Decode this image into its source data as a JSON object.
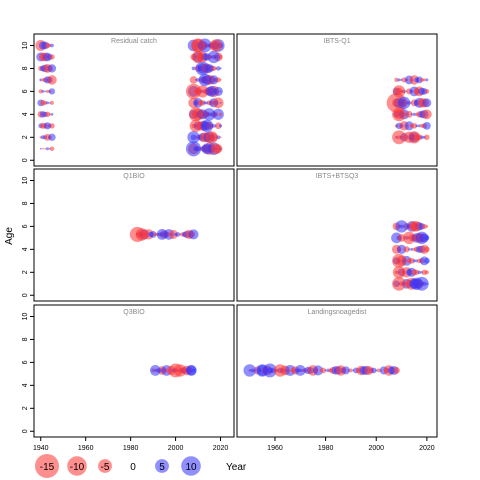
{
  "chart_data": {
    "type": "scatter",
    "ylabel": "Age",
    "xlabel": "Year",
    "colors": {
      "positive": "#3333ff",
      "negative": "#ff3333",
      "fill_opacity": 0.55
    },
    "age_ticks": [
      "0",
      "2",
      "4",
      "6",
      "8",
      "10"
    ],
    "year_ticks": [
      "1940",
      "1960",
      "1980",
      "2000",
      "2020"
    ],
    "ylim": [
      -0.5,
      11
    ],
    "left_xlim": [
      1937,
      2026
    ],
    "right_xlim": [
      1945,
      2024
    ],
    "legend": {
      "values": [
        -15,
        -10,
        -5,
        0,
        5,
        10
      ],
      "labels": [
        "-15",
        "-10",
        "-5",
        "0",
        "5",
        "10"
      ]
    },
    "panels": [
      {
        "title": "Residual catch",
        "col": 0,
        "row": 0,
        "show_x_ticks": false,
        "show_y_ticks": true,
        "rows": [
          {
            "age": 1,
            "spans": [
              {
                "from": 1940,
                "to": 1945,
                "amp": 0.6
              },
              {
                "from": 2008,
                "to": 2020,
                "amp": 4.5
              }
            ],
            "bigs": [
              [
                2008,
                6
              ],
              [
                2014,
                3
              ],
              [
                2018,
                -3
              ]
            ]
          },
          {
            "age": 2,
            "spans": [
              {
                "from": 1940,
                "to": 1945,
                "amp": 1.5
              },
              {
                "from": 2008,
                "to": 2020,
                "amp": 4
              }
            ],
            "bigs": [
              [
                2008,
                4
              ],
              [
                2016,
                -4
              ]
            ]
          },
          {
            "age": 3,
            "spans": [
              {
                "from": 1940,
                "to": 1945,
                "amp": 1.5
              },
              {
                "from": 2008,
                "to": 2020,
                "amp": 3.5
              }
            ],
            "bigs": [
              [
                2009,
                -4
              ],
              [
                2014,
                4
              ]
            ]
          },
          {
            "age": 4,
            "spans": [
              {
                "from": 1940,
                "to": 1945,
                "amp": 1.5
              },
              {
                "from": 2008,
                "to": 2020,
                "amp": 4
              }
            ],
            "bigs": [
              [
                2009,
                -5
              ],
              [
                2015,
                4
              ]
            ]
          },
          {
            "age": 5,
            "spans": [
              {
                "from": 1940,
                "to": 1945,
                "amp": 1.8
              },
              {
                "from": 2008,
                "to": 2020,
                "amp": 3
              }
            ],
            "bigs": []
          },
          {
            "age": 6,
            "spans": [
              {
                "from": 1940,
                "to": 1945,
                "amp": 1.5
              },
              {
                "from": 2008,
                "to": 2020,
                "amp": 3.5
              }
            ],
            "bigs": [
              [
                2008,
                -6
              ],
              [
                2012,
                -4
              ],
              [
                2016,
                3
              ]
            ]
          },
          {
            "age": 7,
            "spans": [
              {
                "from": 1940,
                "to": 1945,
                "amp": 2.5
              },
              {
                "from": 2008,
                "to": 2020,
                "amp": 3.5
              }
            ],
            "bigs": [
              [
                2013,
                4
              ]
            ]
          },
          {
            "age": 8,
            "spans": [
              {
                "from": 1940,
                "to": 1945,
                "amp": 2.5
              },
              {
                "from": 2008,
                "to": 2020,
                "amp": 3.5
              }
            ],
            "bigs": [
              [
                2012,
                5
              ]
            ]
          },
          {
            "age": 9,
            "spans": [
              {
                "from": 1940,
                "to": 1945,
                "amp": 3
              },
              {
                "from": 2008,
                "to": 2020,
                "amp": 3.5
              }
            ],
            "bigs": [
              [
                2010,
                -4
              ],
              [
                2017,
                4
              ]
            ]
          },
          {
            "age": 10,
            "spans": [
              {
                "from": 1940,
                "to": 1945,
                "amp": 3.5
              },
              {
                "from": 2008,
                "to": 2020,
                "amp": 4.5
              }
            ],
            "bigs": [
              [
                2013,
                5
              ],
              [
                2010,
                -5
              ],
              [
                2018,
                -4
              ]
            ]
          }
        ]
      },
      {
        "title": "IBTS-Q1",
        "col": 1,
        "row": 0,
        "show_x_ticks": false,
        "show_y_ticks": false,
        "rows": [
          {
            "age": 2,
            "spans": [
              {
                "from": 2008,
                "to": 2020,
                "amp": 3.5
              }
            ],
            "bigs": [
              [
                2009,
                -5
              ],
              [
                2015,
                -4
              ]
            ]
          },
          {
            "age": 3,
            "spans": [
              {
                "from": 2008,
                "to": 2020,
                "amp": 2.5
              }
            ],
            "bigs": []
          },
          {
            "age": 4,
            "spans": [
              {
                "from": 2008,
                "to": 2020,
                "amp": 3
              }
            ],
            "bigs": [
              [
                2009,
                -5
              ]
            ]
          },
          {
            "age": 5,
            "spans": [
              {
                "from": 2008,
                "to": 2020,
                "amp": 3.5
              }
            ],
            "bigs": [
              [
                2008,
                -10
              ],
              [
                2011,
                4
              ]
            ]
          },
          {
            "age": 6,
            "spans": [
              {
                "from": 2008,
                "to": 2020,
                "amp": 3
              }
            ],
            "bigs": [
              [
                2009,
                -4
              ]
            ]
          },
          {
            "age": 7,
            "spans": [
              {
                "from": 2008,
                "to": 2020,
                "amp": 2.5
              }
            ],
            "bigs": []
          }
        ]
      },
      {
        "title": "Q1BIO",
        "col": 0,
        "row": 1,
        "show_x_ticks": false,
        "show_y_ticks": true,
        "rows": [
          {
            "age": 5.3,
            "spans": [
              {
                "from": 1983,
                "to": 2008,
                "amp": 3
              }
            ],
            "bigs": [
              [
                1983,
                -6
              ],
              [
                1985,
                -4
              ],
              [
                1994,
                3
              ]
            ]
          }
        ]
      },
      {
        "title": "IBTS+BTSQ3",
        "col": 1,
        "row": 1,
        "show_x_ticks": false,
        "show_y_ticks": false,
        "rows": [
          {
            "age": 1,
            "spans": [
              {
                "from": 2008,
                "to": 2020,
                "amp": 4.5
              }
            ],
            "bigs": [
              [
                2009,
                -5
              ],
              [
                2018,
                5
              ],
              [
                2016,
                4
              ]
            ]
          },
          {
            "age": 2,
            "spans": [
              {
                "from": 2008,
                "to": 2020,
                "amp": 3
              }
            ],
            "bigs": [
              [
                2009,
                -4
              ]
            ]
          },
          {
            "age": 3,
            "spans": [
              {
                "from": 2008,
                "to": 2020,
                "amp": 3
              }
            ],
            "bigs": [
              [
                2009,
                -5
              ]
            ]
          },
          {
            "age": 4,
            "spans": [
              {
                "from": 2008,
                "to": 2020,
                "amp": 2.5
              }
            ],
            "bigs": []
          },
          {
            "age": 5,
            "spans": [
              {
                "from": 2008,
                "to": 2020,
                "amp": 3.5
              }
            ],
            "bigs": [
              [
                2013,
                -4
              ],
              [
                2018,
                4
              ]
            ]
          },
          {
            "age": 6,
            "spans": [
              {
                "from": 2008,
                "to": 2020,
                "amp": 3.5
              }
            ],
            "bigs": [
              [
                2010,
                4
              ],
              [
                2015,
                -3
              ]
            ]
          }
        ]
      },
      {
        "title": "Q3BIO",
        "col": 0,
        "row": 2,
        "show_x_ticks": true,
        "show_y_ticks": true,
        "rows": [
          {
            "age": 5.3,
            "spans": [
              {
                "from": 1990,
                "to": 2008,
                "amp": 3
              }
            ],
            "bigs": [
              [
                1991,
                3
              ],
              [
                2000,
                -5
              ],
              [
                2002,
                -4
              ],
              [
                2007,
                3
              ]
            ]
          }
        ]
      },
      {
        "title": "Landingsnoagedist",
        "col": 1,
        "row": 2,
        "show_x_ticks": true,
        "show_y_ticks": false,
        "rows": [
          {
            "age": 5.3,
            "spans": [
              {
                "from": 1950,
                "to": 2008,
                "amp": 3.2
              }
            ],
            "bigs": [
              [
                1950,
                4
              ],
              [
                1955,
                4
              ],
              [
                1958,
                5
              ],
              [
                1962,
                -4
              ],
              [
                1970,
                3
              ]
            ]
          }
        ]
      }
    ]
  }
}
